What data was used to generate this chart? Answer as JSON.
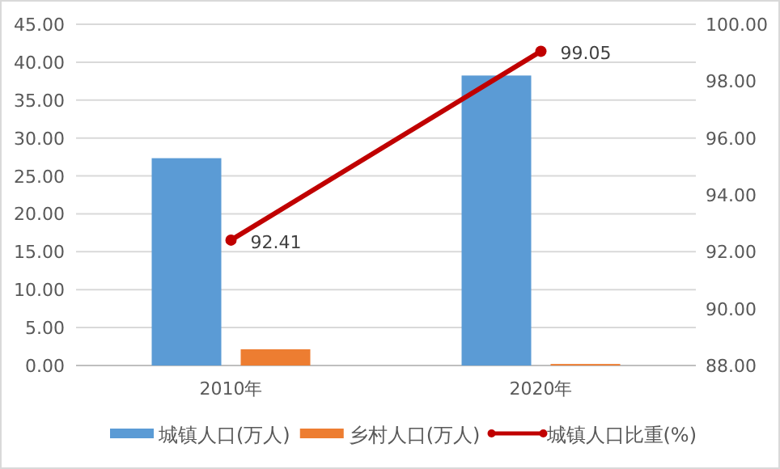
{
  "chart_data": {
    "type": "bar",
    "categories": [
      "2010年",
      "2020年"
    ],
    "series": [
      {
        "name": "城镇人口(万人)",
        "color": "#5b9bd5",
        "values": [
          27.34,
          38.24
        ]
      },
      {
        "name": "乡村人口(万人)",
        "color": "#ed7d31",
        "values": [
          2.14,
          0.2
        ]
      },
      {
        "name": "城镇人口比重(%)",
        "type": "line",
        "axis": "y2",
        "color": "#c00000",
        "marker": "circle",
        "values": [
          92.41,
          99.05
        ],
        "value_labels": [
          "92.41",
          "99.05"
        ]
      }
    ],
    "ylim": [
      0,
      45
    ],
    "yticks": [
      {
        "value": 0,
        "label": "0.00"
      },
      {
        "value": 5,
        "label": "5.00"
      },
      {
        "value": 10,
        "label": "10.00"
      },
      {
        "value": 15,
        "label": "15.00"
      },
      {
        "value": 20,
        "label": "20.00"
      },
      {
        "value": 25,
        "label": "25.00"
      },
      {
        "value": 30,
        "label": "30.00"
      },
      {
        "value": 35,
        "label": "35.00"
      },
      {
        "value": 40,
        "label": "40.00"
      },
      {
        "value": 45,
        "label": "45.00"
      }
    ],
    "y2lim": [
      88,
      100
    ],
    "y2ticks": [
      {
        "value": 88,
        "label": "88.00"
      },
      {
        "value": 90,
        "label": "90.00"
      },
      {
        "value": 92,
        "label": "92.00"
      },
      {
        "value": 94,
        "label": "94.00"
      },
      {
        "value": 96,
        "label": "96.00"
      },
      {
        "value": 98,
        "label": "98.00"
      },
      {
        "value": 100,
        "label": "100.00"
      }
    ],
    "grid": "y",
    "legend": "bottom"
  }
}
